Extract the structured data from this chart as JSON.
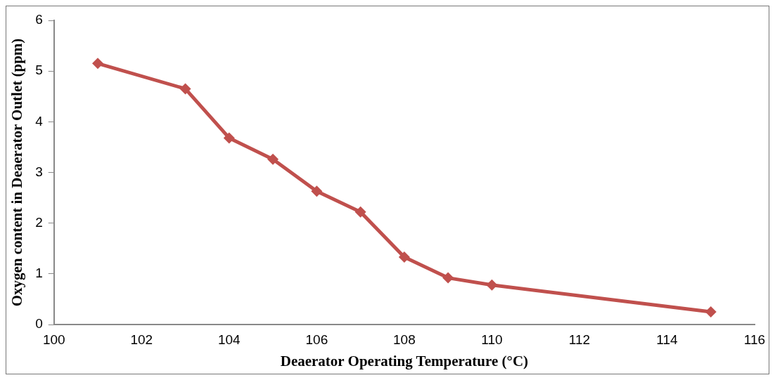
{
  "chart_data": {
    "type": "line",
    "xlabel": "Deaerator Operating Temperature (°C)",
    "ylabel": "Oxygen content in Deaerator Outlet (ppm)",
    "x": [
      101,
      103,
      104,
      105,
      106,
      107,
      108,
      109,
      110,
      115
    ],
    "series": [
      {
        "color": "#c0504d",
        "values": [
          5.15,
          4.65,
          3.68,
          3.26,
          2.63,
          2.22,
          1.33,
          0.92,
          0.78,
          0.25
        ]
      }
    ],
    "xlim": [
      100,
      116
    ],
    "xticks": [
      100,
      102,
      104,
      106,
      108,
      110,
      112,
      114,
      116
    ],
    "ylim": [
      0,
      6
    ],
    "yticks": [
      0,
      1,
      2,
      3,
      4,
      5,
      6
    ],
    "grid": false,
    "legend": false,
    "marker": "diamond",
    "line_style": "solid"
  }
}
